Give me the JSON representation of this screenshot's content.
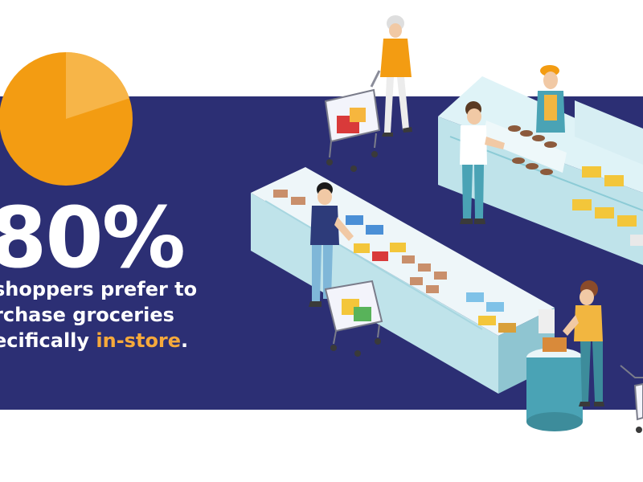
{
  "stat": {
    "value": "80%",
    "share": 0.8,
    "color_main": "#f39c12",
    "color_light": "#f7b548"
  },
  "caption": {
    "line1": "shoppers prefer to",
    "line2": "rchase groceries",
    "line3_start": "ecifically ",
    "line3_highlight": "in-store",
    "line3_end": ".",
    "highlight_color": "#f6a93b"
  },
  "colors": {
    "band": "#2c2f74",
    "text": "#ffffff"
  },
  "illustration": {
    "subject": "grocery-store-shoppers-scene",
    "icons": [
      "shopping-cart-icon",
      "shopper-figure",
      "display-counter",
      "cashier-figure",
      "scale-icon"
    ]
  }
}
